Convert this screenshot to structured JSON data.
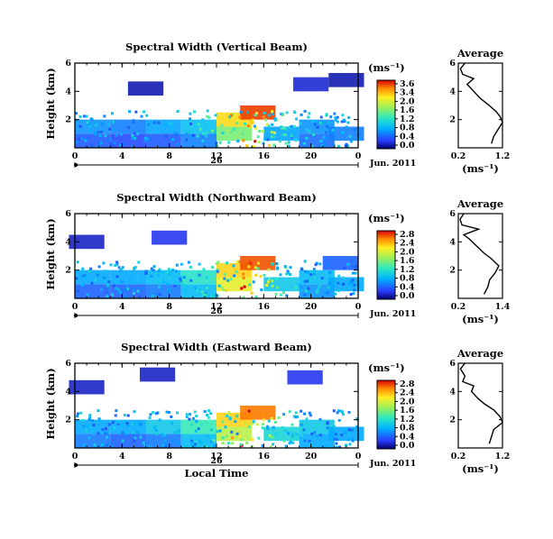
{
  "chart_data": [
    {
      "type": "heatmap",
      "title": "Spectral Width (Vertical Beam)",
      "ylabel": "Height (km)",
      "ylim": [
        0,
        6
      ],
      "yticks": [
        "6",
        "4",
        "2"
      ],
      "xlim": [
        0,
        24
      ],
      "xticks": [
        "0",
        "4",
        "8",
        "12",
        "16",
        "20",
        "0"
      ],
      "date_day": "26",
      "date_month": "Jun. 2011",
      "colorbar": {
        "unit": "(ms⁻¹)",
        "labels": [
          "3.6",
          "3.4",
          "2.0",
          "1.6",
          "1.2",
          "0.8",
          "0.4",
          "0.0"
        ],
        "range": [
          0,
          3.6
        ]
      },
      "cells": [
        {
          "x": 1.5,
          "y": 0.5,
          "v": 0.6
        },
        {
          "x": 1.5,
          "y": 1.5,
          "v": 0.9
        },
        {
          "x": 4.5,
          "y": 0.5,
          "v": 0.5
        },
        {
          "x": 4.5,
          "y": 1.5,
          "v": 0.8
        },
        {
          "x": 7.5,
          "y": 0.5,
          "v": 0.6
        },
        {
          "x": 7.5,
          "y": 1.5,
          "v": 1.0
        },
        {
          "x": 10.5,
          "y": 0.5,
          "v": 0.8
        },
        {
          "x": 10.5,
          "y": 1.5,
          "v": 1.2
        },
        {
          "x": 13.5,
          "y": 1.0,
          "v": 2.0
        },
        {
          "x": 13.5,
          "y": 2.0,
          "v": 2.8
        },
        {
          "x": 15.5,
          "y": 2.5,
          "v": 3.4
        },
        {
          "x": 17.5,
          "y": 1.0,
          "v": 1.0
        },
        {
          "x": 20.5,
          "y": 0.5,
          "v": 0.7
        },
        {
          "x": 20.5,
          "y": 1.5,
          "v": 0.9
        },
        {
          "x": 23.0,
          "y": 1.0,
          "v": 0.8
        },
        {
          "x": 6.0,
          "y": 4.2,
          "v": 0.2
        },
        {
          "x": 20.0,
          "y": 4.5,
          "v": 0.3
        },
        {
          "x": 23.0,
          "y": 4.8,
          "v": 0.2
        }
      ],
      "average": {
        "title": "Average",
        "xlabel": "(ms⁻¹)",
        "xlim": [
          0.2,
          1.2
        ],
        "xticks": [
          "0.2",
          "1.2"
        ],
        "ylim": [
          0,
          6
        ],
        "yticks": [
          "6",
          "4",
          "2"
        ],
        "profile": [
          [
            0.95,
            0.3
          ],
          [
            1.0,
            0.8
          ],
          [
            1.1,
            1.3
          ],
          [
            1.2,
            1.8
          ],
          [
            1.15,
            2.2
          ],
          [
            1.05,
            2.6
          ],
          [
            0.9,
            3.0
          ],
          [
            0.7,
            3.5
          ],
          [
            0.55,
            4.0
          ],
          [
            0.4,
            4.5
          ],
          [
            0.55,
            4.9
          ],
          [
            0.3,
            5.2
          ],
          [
            0.25,
            5.6
          ],
          [
            0.35,
            6.0
          ]
        ]
      }
    },
    {
      "type": "heatmap",
      "title": "Spectral Width (Northward Beam)",
      "ylabel": "Height (km)",
      "ylim": [
        0,
        6
      ],
      "yticks": [
        "6",
        "4",
        "2"
      ],
      "xlim": [
        0,
        24
      ],
      "xticks": [
        "0",
        "4",
        "8",
        "12",
        "16",
        "20",
        "0"
      ],
      "date_day": "26",
      "date_month": "Jun. 2011",
      "colorbar": {
        "unit": "(ms⁻¹)",
        "labels": [
          "2.8",
          "2.4",
          "2.0",
          "1.6",
          "1.2",
          "0.8",
          "0.4",
          "0.0"
        ],
        "range": [
          0,
          2.8
        ]
      },
      "cells": [
        {
          "x": 1.5,
          "y": 0.5,
          "v": 0.5
        },
        {
          "x": 1.5,
          "y": 1.5,
          "v": 0.8
        },
        {
          "x": 4.5,
          "y": 0.5,
          "v": 0.5
        },
        {
          "x": 4.5,
          "y": 1.5,
          "v": 0.8
        },
        {
          "x": 7.5,
          "y": 0.5,
          "v": 0.6
        },
        {
          "x": 7.5,
          "y": 1.5,
          "v": 0.9
        },
        {
          "x": 10.5,
          "y": 0.5,
          "v": 0.9
        },
        {
          "x": 10.5,
          "y": 1.5,
          "v": 1.2
        },
        {
          "x": 13.5,
          "y": 1.0,
          "v": 2.0
        },
        {
          "x": 13.5,
          "y": 2.0,
          "v": 2.2
        },
        {
          "x": 15.5,
          "y": 2.5,
          "v": 2.6
        },
        {
          "x": 17.5,
          "y": 1.0,
          "v": 1.0
        },
        {
          "x": 20.5,
          "y": 0.5,
          "v": 0.7
        },
        {
          "x": 20.5,
          "y": 1.5,
          "v": 0.9
        },
        {
          "x": 23.0,
          "y": 1.0,
          "v": 0.8
        },
        {
          "x": 1.0,
          "y": 4.0,
          "v": 0.2
        },
        {
          "x": 8.0,
          "y": 4.3,
          "v": 0.3
        },
        {
          "x": 22.5,
          "y": 2.5,
          "v": 0.5
        }
      ],
      "average": {
        "title": "Average",
        "xlabel": "(ms⁻¹)",
        "xlim": [
          0.2,
          1.4
        ],
        "xticks": [
          "0.2",
          "1.4"
        ],
        "ylim": [
          0,
          6
        ],
        "yticks": [
          "6",
          "4",
          "2"
        ],
        "profile": [
          [
            0.9,
            0.3
          ],
          [
            1.0,
            0.8
          ],
          [
            1.05,
            1.3
          ],
          [
            1.2,
            1.8
          ],
          [
            1.3,
            2.3
          ],
          [
            1.1,
            2.8
          ],
          [
            0.9,
            3.2
          ],
          [
            0.7,
            3.7
          ],
          [
            0.5,
            4.2
          ],
          [
            0.35,
            4.5
          ],
          [
            0.75,
            4.9
          ],
          [
            0.3,
            5.2
          ],
          [
            0.25,
            5.6
          ],
          [
            0.35,
            6.0
          ]
        ]
      }
    },
    {
      "type": "heatmap",
      "title": "Spectral Width (Eastward Beam)",
      "ylabel": "Height (km)",
      "ylim": [
        0,
        6
      ],
      "yticks": [
        "6",
        "4",
        "2"
      ],
      "xlim": [
        0,
        24
      ],
      "xticks": [
        "0",
        "4",
        "8",
        "12",
        "16",
        "20",
        "0"
      ],
      "xlabel": "Local Time",
      "date_day": "26",
      "date_month": "Jun. 2011",
      "colorbar": {
        "unit": "(ms⁻¹)",
        "labels": [
          "2.8",
          "2.4",
          "2.0",
          "1.6",
          "1.2",
          "0.8",
          "0.4",
          "0.0"
        ],
        "range": [
          0,
          2.8
        ]
      },
      "cells": [
        {
          "x": 1.5,
          "y": 0.5,
          "v": 0.6
        },
        {
          "x": 1.5,
          "y": 1.5,
          "v": 0.8
        },
        {
          "x": 4.5,
          "y": 0.5,
          "v": 0.5
        },
        {
          "x": 4.5,
          "y": 1.5,
          "v": 0.8
        },
        {
          "x": 7.5,
          "y": 0.5,
          "v": 0.6
        },
        {
          "x": 7.5,
          "y": 1.5,
          "v": 1.0
        },
        {
          "x": 10.5,
          "y": 0.5,
          "v": 0.9
        },
        {
          "x": 10.5,
          "y": 1.5,
          "v": 1.3
        },
        {
          "x": 13.5,
          "y": 1.0,
          "v": 1.8
        },
        {
          "x": 13.5,
          "y": 2.0,
          "v": 2.2
        },
        {
          "x": 15.5,
          "y": 2.5,
          "v": 2.5
        },
        {
          "x": 17.5,
          "y": 1.0,
          "v": 1.1
        },
        {
          "x": 20.5,
          "y": 0.5,
          "v": 0.8
        },
        {
          "x": 20.5,
          "y": 1.5,
          "v": 1.0
        },
        {
          "x": 23.0,
          "y": 1.0,
          "v": 0.8
        },
        {
          "x": 1.0,
          "y": 4.3,
          "v": 0.2
        },
        {
          "x": 7.0,
          "y": 5.2,
          "v": 0.2
        },
        {
          "x": 19.5,
          "y": 5.0,
          "v": 0.3
        }
      ],
      "average": {
        "title": "Average",
        "xlabel": "(ms⁻¹)",
        "xlim": [
          0.2,
          1.2
        ],
        "xticks": [
          "0.2",
          "1.2"
        ],
        "ylim": [
          0,
          6
        ],
        "yticks": [
          "6",
          "4",
          "2"
        ],
        "profile": [
          [
            0.9,
            0.3
          ],
          [
            0.95,
            0.8
          ],
          [
            1.0,
            1.3
          ],
          [
            1.2,
            1.8
          ],
          [
            1.15,
            2.2
          ],
          [
            1.0,
            2.7
          ],
          [
            0.8,
            3.1
          ],
          [
            0.65,
            3.5
          ],
          [
            0.5,
            4.0
          ],
          [
            0.55,
            4.4
          ],
          [
            0.3,
            4.7
          ],
          [
            0.35,
            5.1
          ],
          [
            0.25,
            5.6
          ],
          [
            0.35,
            6.0
          ]
        ]
      }
    }
  ]
}
